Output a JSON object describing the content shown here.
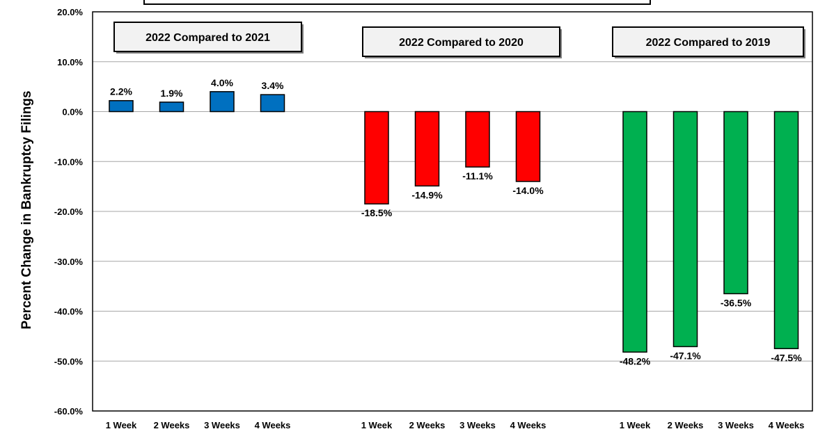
{
  "chart_data": {
    "type": "bar",
    "ylabel": "Percent Change in Bankruptcy Filings",
    "ylim": [
      -60,
      20
    ],
    "y_ticks": [
      "20.0%",
      "10.0%",
      "0.0%",
      "-10.0%",
      "-20.0%",
      "-30.0%",
      "-40.0%",
      "-50.0%",
      "-60.0%"
    ],
    "grid": true,
    "categories": [
      "1 Week",
      "2 Weeks",
      "3 Weeks",
      "4 Weeks"
    ],
    "groups": [
      {
        "title": "2022 Compared to 2021",
        "color": "#0070C0",
        "values": [
          2.2,
          1.9,
          4.0,
          3.4
        ],
        "labels": [
          "2.2%",
          "1.9%",
          "4.0%",
          "3.4%"
        ]
      },
      {
        "title": "2022 Compared to 2020",
        "color": "#FF0000",
        "values": [
          -18.5,
          -14.9,
          -11.1,
          -14.0
        ],
        "labels": [
          "-18.5%",
          "-14.9%",
          "-11.1%",
          "-14.0%"
        ]
      },
      {
        "title": "2022 Compared to 2019",
        "color": "#00B050",
        "values": [
          -48.2,
          -47.1,
          -36.5,
          -47.5
        ],
        "labels": [
          "-48.2%",
          "-47.1%",
          "-36.5%",
          "-47.5%"
        ]
      }
    ]
  }
}
